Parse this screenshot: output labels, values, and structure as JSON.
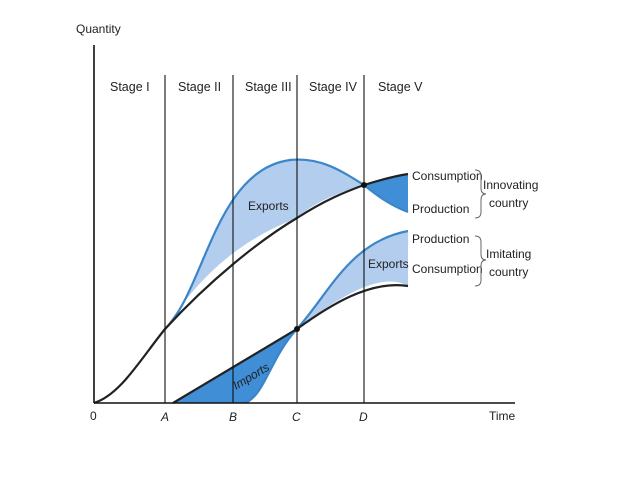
{
  "axes": {
    "y_label": "Quantity",
    "x_label": "Time",
    "origin": "0"
  },
  "ticks": [
    "A",
    "B",
    "C",
    "D"
  ],
  "stages": [
    "Stage I",
    "Stage II",
    "Stage III",
    "Stage IV",
    "Stage V"
  ],
  "regions": {
    "exports_top": "Exports",
    "exports_bottom": "Exports",
    "imports": "Imports"
  },
  "curve_labels": {
    "innov_consumption": "Consumption",
    "innov_production": "Production",
    "imit_production": "Production",
    "imit_consumption": "Consumption"
  },
  "groups": {
    "innovating_1": "Innovating",
    "innovating_2": "country",
    "imitating_1": "Imitating",
    "imitating_2": "country"
  },
  "colors": {
    "light_fill": "#b3cdee",
    "dark_fill": "#3f8ed6",
    "edge": "#3a86c8",
    "ink": "#222222"
  }
}
